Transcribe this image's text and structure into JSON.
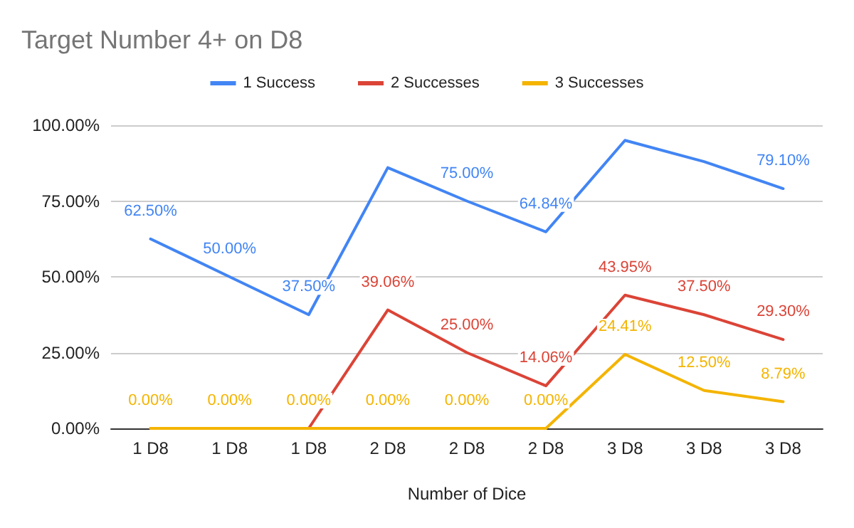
{
  "chart_data": {
    "type": "line",
    "title": "Target Number 4+ on D8",
    "xlabel": "Number of Dice",
    "categories": [
      "1 D8",
      "1 D8",
      "1 D8",
      "2 D8",
      "2 D8",
      "2 D8",
      "3 D8",
      "3 D8",
      "3 D8"
    ],
    "series": [
      {
        "name": "1 Success",
        "color": "#4285f4",
        "values": [
          62.5,
          50,
          37.5,
          86,
          75,
          64.84,
          95,
          88,
          79.1
        ],
        "value_labels": [
          "62.50%",
          "50.00%",
          "37.50%",
          null,
          "75.00%",
          "64.84%",
          null,
          null,
          "79.10%"
        ]
      },
      {
        "name": "2 Successes",
        "color": "#db4437",
        "values": [
          0,
          0,
          0,
          39.06,
          25,
          14.06,
          43.95,
          37.5,
          29.3
        ],
        "value_labels": [
          null,
          null,
          null,
          "39.06%",
          "25.00%",
          "14.06%",
          "43.95%",
          "37.50%",
          "29.30%"
        ]
      },
      {
        "name": "3 Successes",
        "color": "#f4b400",
        "values": [
          0,
          0,
          0,
          0,
          0,
          0,
          24.41,
          12.5,
          8.79
        ],
        "value_labels": [
          "0.00%",
          "0.00%",
          "0.00%",
          "0.00%",
          "0.00%",
          "0.00%",
          "24.41%",
          "12.50%",
          "8.79%"
        ]
      }
    ],
    "ylim": [
      0,
      100
    ],
    "yticks": [
      {
        "value": 0,
        "label": "0.00%"
      },
      {
        "value": 25,
        "label": "25.00%"
      },
      {
        "value": 50,
        "label": "50.00%"
      },
      {
        "value": 75,
        "label": "75.00%"
      },
      {
        "value": 100,
        "label": "100.00%"
      }
    ],
    "grid": "y",
    "legend": "top",
    "marker": "none",
    "line_style": "solid"
  }
}
